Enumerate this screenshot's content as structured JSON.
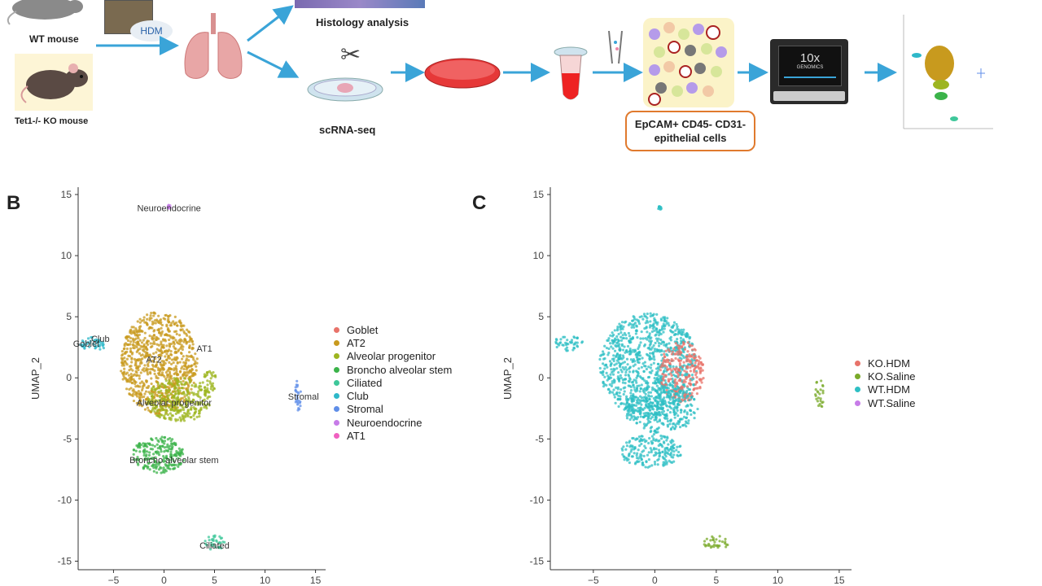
{
  "workflow": {
    "wt_mouse": "WT mouse",
    "ko_mouse": "Tet1-/- KO mouse",
    "hdm": "HDM",
    "histology": "Histology analysis",
    "scrna": "scRNA-seq",
    "epcam": "EpCAM+ CD45- CD31- epithelial cells",
    "tenx": "10x",
    "tenx_sub": "GENOMICS",
    "colors": {
      "arrow": "#3aa4d8",
      "box_border": "#e07a2e",
      "cell_bg": "#fbf3c8"
    }
  },
  "panels": {
    "b": "B",
    "c": "C"
  },
  "chart_data": [
    {
      "type": "scatter",
      "id": "B",
      "xlabel": "",
      "ylabel": "UMAP_2",
      "xlim": [
        -8.5,
        16
      ],
      "ylim": [
        -15.7,
        15.6
      ],
      "xticks": [
        -5,
        0,
        5,
        10,
        15
      ],
      "yticks": [
        15,
        10,
        5,
        0,
        -5,
        -10,
        -15
      ],
      "grid": false,
      "legend_position": "right",
      "series": [
        {
          "name": "Goblet",
          "color": "#e8736a"
        },
        {
          "name": "AT2",
          "color": "#c89a1e"
        },
        {
          "name": "Alveolar progenitor",
          "color": "#9db520"
        },
        {
          "name": "Broncho alveolar stem",
          "color": "#3bb34a"
        },
        {
          "name": "Ciliated",
          "color": "#3ec79a"
        },
        {
          "name": "Club",
          "color": "#2eb8c9"
        },
        {
          "name": "Stromal",
          "color": "#5f8ee8"
        },
        {
          "name": "Neuroendocrine",
          "color": "#c77ce8"
        },
        {
          "name": "AT1",
          "color": "#f060c0"
        }
      ],
      "clusters": [
        {
          "color": "#c89a1e",
          "cx": -0.5,
          "cy": 1.2,
          "rx": 3.8,
          "ry": 4.2
        },
        {
          "color": "#9db520",
          "cx": 1.5,
          "cy": -1.8,
          "rx": 3.2,
          "ry": 1.8
        },
        {
          "color": "#9db520",
          "cx": 4.5,
          "cy": -0.3,
          "rx": 0.7,
          "ry": 0.9
        },
        {
          "color": "#3bb34a",
          "cx": -0.5,
          "cy": -6.3,
          "rx": 2.6,
          "ry": 1.5
        },
        {
          "color": "#2eb8c9",
          "cx": -7.0,
          "cy": 2.8,
          "rx": 1.3,
          "ry": 0.6
        },
        {
          "color": "#3ec79a",
          "cx": 5.0,
          "cy": -13.5,
          "rx": 1.0,
          "ry": 0.6
        },
        {
          "color": "#5f8ee8",
          "cx": 13.3,
          "cy": -1.4,
          "rx": 0.35,
          "ry": 1.3
        },
        {
          "color": "#c77ce8",
          "cx": 0.5,
          "cy": 14.0,
          "rx": 0.15,
          "ry": 0.15
        }
      ],
      "labels": [
        {
          "text": "Neuroendocrine",
          "x": 0.5,
          "y": 13.9
        },
        {
          "text": "Club",
          "x": -6.3,
          "y": 3.2
        },
        {
          "text": "Goblet",
          "x": -7.7,
          "y": 2.8
        },
        {
          "text": "AT2",
          "x": -1.0,
          "y": 1.5
        },
        {
          "text": "AT1",
          "x": 4.0,
          "y": 2.4
        },
        {
          "text": "Stromal",
          "x": 13.8,
          "y": -1.5
        },
        {
          "text": "Alveolar progenitor",
          "x": 1.0,
          "y": -2.0
        },
        {
          "text": "Broncho alveolar stem",
          "x": 1.0,
          "y": -6.7
        },
        {
          "text": "Ciliated",
          "x": 5.0,
          "y": -13.7
        }
      ]
    },
    {
      "type": "scatter",
      "id": "C",
      "xlabel": "",
      "ylabel": "UMAP_2",
      "xlim": [
        -8.5,
        16
      ],
      "ylim": [
        -15.7,
        15.6
      ],
      "xticks": [
        -5,
        0,
        5,
        10,
        15
      ],
      "yticks": [
        15,
        10,
        5,
        0,
        -5,
        -10,
        -15
      ],
      "grid": false,
      "legend_position": "right",
      "series": [
        {
          "name": "KO.HDM",
          "color": "#e8736a"
        },
        {
          "name": "KO.Saline",
          "color": "#7aaa2a"
        },
        {
          "name": "WT.HDM",
          "color": "#2ebfc4"
        },
        {
          "name": "WT.Saline",
          "color": "#c77ce8"
        }
      ],
      "clusters": [
        {
          "color": "#2ebfc4",
          "cx": -0.5,
          "cy": 1.0,
          "rx": 4.0,
          "ry": 4.3
        },
        {
          "color": "#e8736a",
          "cx": 2.2,
          "cy": 0.5,
          "rx": 1.8,
          "ry": 2.5
        },
        {
          "color": "#2ebfc4",
          "cx": 0.5,
          "cy": -2.5,
          "rx": 3.0,
          "ry": 2.0
        },
        {
          "color": "#2ebfc4",
          "cx": -0.3,
          "cy": -6.0,
          "rx": 2.5,
          "ry": 1.4
        },
        {
          "color": "#2ebfc4",
          "cx": -7.0,
          "cy": 2.8,
          "rx": 1.3,
          "ry": 0.6
        },
        {
          "color": "#7aaa2a",
          "cx": 5.0,
          "cy": -13.5,
          "rx": 1.0,
          "ry": 0.6
        },
        {
          "color": "#7aaa2a",
          "cx": 13.4,
          "cy": -1.3,
          "rx": 0.35,
          "ry": 1.3
        },
        {
          "color": "#2ebfc4",
          "cx": 0.4,
          "cy": 13.9,
          "rx": 0.15,
          "ry": 0.15
        }
      ],
      "labels": []
    }
  ]
}
